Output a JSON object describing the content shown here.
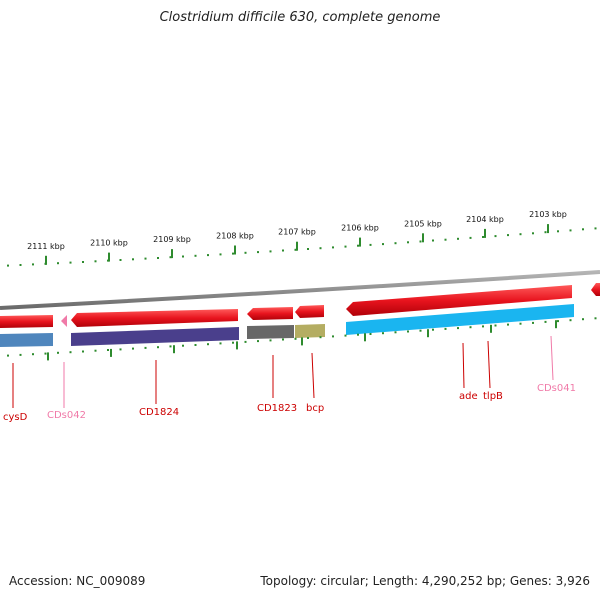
{
  "title": "Clostridium difficile 630, complete genome",
  "footer": {
    "accession": "Accession: NC_009089",
    "info": "Topology: circular; Length: 4,290,252 bp; Genes: 3,926"
  },
  "colors": {
    "backbone": "#8a8a8a",
    "tick": "#2e8b2e",
    "gene_red": "#e8141e",
    "label_red": "#cc0000",
    "label_pink": "#f07aa8",
    "cds_blue_steel": "#4f86bd",
    "cds_purple": "#4a3f8c",
    "cds_gray": "#676767",
    "cds_olive": "#b4ad62",
    "cds_cyan": "#1ab5f0"
  },
  "kbp_ticks": [
    "2111 kbp",
    "2110 kbp",
    "2109 kbp",
    "2108 kbp",
    "2107 kbp",
    "2106 kbp",
    "2105 kbp",
    "2104 kbp",
    "2103 kbp"
  ],
  "gene_labels": [
    {
      "name": "cysD",
      "color": "red"
    },
    {
      "name": "CDs042",
      "color": "pink"
    },
    {
      "name": "CD1824",
      "color": "red"
    },
    {
      "name": "CD1823",
      "color": "red"
    },
    {
      "name": "bcp",
      "color": "red"
    },
    {
      "name": "ade",
      "color": "red"
    },
    {
      "name": "tlpB",
      "color": "red"
    },
    {
      "name": "CDs041",
      "color": "pink"
    }
  ]
}
